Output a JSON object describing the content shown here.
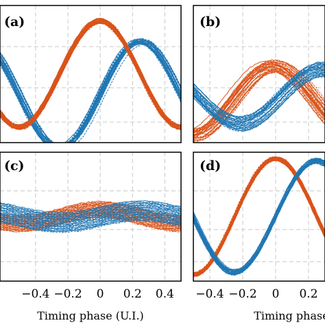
{
  "colors": {
    "blue": "#1f77b4",
    "orange": "#d95319",
    "grid": "#c8c8c8",
    "frame": "#000000"
  },
  "chart_data": [
    {
      "type": "line",
      "label": "(a)",
      "xlim": [
        -0.5,
        0.5
      ],
      "grid": true,
      "series": [
        {
          "color": "blue",
          "center": [
            0.25,
            0.5,
            0.25
          ],
          "amp": 0.43,
          "phase": 0.25,
          "band": 0.045,
          "jitter": 0.05
        },
        {
          "color": "orange",
          "center": [
            0.5,
            0.5,
            0.5
          ],
          "amp": 0.43,
          "phase": 0.0,
          "band": 0.04,
          "jitter": 0.02
        }
      ]
    },
    {
      "type": "line",
      "label": "(b)",
      "xlim": [
        -0.5,
        0.5
      ],
      "grid": true,
      "series": [
        {
          "color": "orange",
          "center": [
            0.2,
            0.45,
            0.2
          ],
          "amp": 0.28,
          "phase": 0.0,
          "band": 0.1,
          "jitter": 0.12
        },
        {
          "color": "blue",
          "center": [
            0.3,
            0.45,
            0.2
          ],
          "amp": 0.22,
          "phase": 0.28,
          "band": 0.12,
          "jitter": 0.04
        }
      ]
    },
    {
      "type": "line",
      "label": "(c)",
      "xlim": [
        -0.5,
        0.5
      ],
      "xticks": [
        -0.4,
        -0.2,
        0,
        0.2,
        0.4
      ],
      "grid": true,
      "series": [
        {
          "color": "orange",
          "center": [
            0.5,
            0.5,
            0.5
          ],
          "amp": 0.06,
          "phase": 0.0,
          "band": 0.14,
          "jitter": 0.0
        },
        {
          "color": "blue",
          "center": [
            0.5,
            0.5,
            0.5
          ],
          "amp": 0.05,
          "phase": 0.25,
          "band": 0.17,
          "jitter": 0.0
        }
      ]
    },
    {
      "type": "line",
      "label": "(d)",
      "xlim": [
        -0.5,
        0.5
      ],
      "xticks": [
        -0.4,
        -0.2,
        0,
        0.2,
        0.4
      ],
      "grid": true,
      "series": [
        {
          "color": "orange",
          "center": [
            0.5,
            0.5,
            0.5
          ],
          "amp": 0.5,
          "phase": 0.0,
          "band": 0.035,
          "jitter": 0.015
        },
        {
          "color": "blue",
          "center": [
            0.5,
            0.5,
            0.5
          ],
          "amp": 0.48,
          "phase": 0.25,
          "band": 0.045,
          "jitter": 0.02
        }
      ]
    }
  ],
  "xlabel": "Timing phase (U.I.)"
}
